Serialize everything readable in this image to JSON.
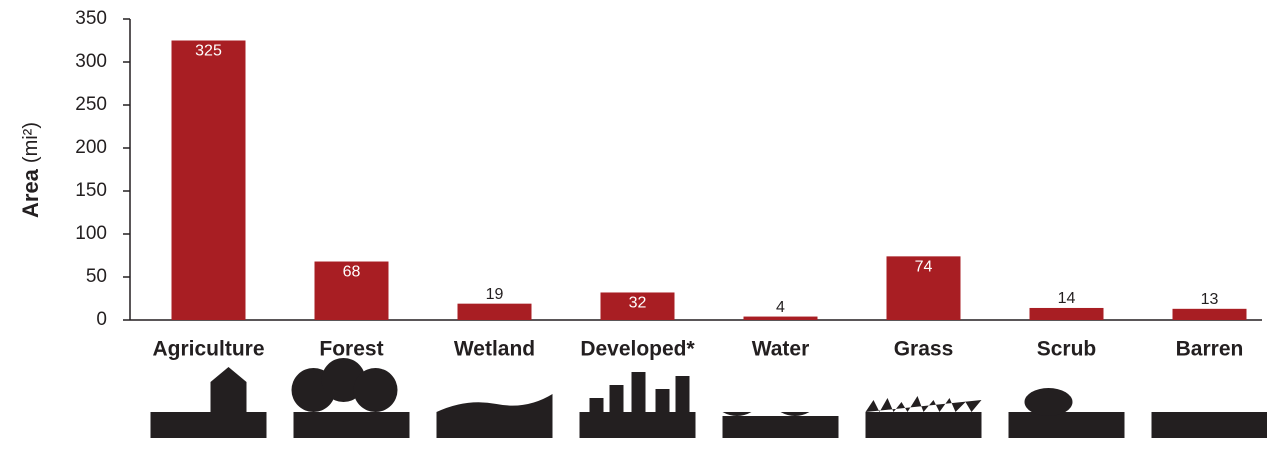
{
  "chart_data": {
    "type": "bar",
    "y_label": "Area",
    "y_label_unit": "(mi²)",
    "categories": [
      "Agriculture",
      "Forest",
      "Wetland",
      "Developed*",
      "Water",
      "Grass",
      "Scrub",
      "Barren"
    ],
    "values": [
      325,
      68,
      19,
      32,
      4,
      74,
      14,
      13
    ],
    "color": "#a81e23",
    "ylim": [
      0,
      350
    ],
    "yticks": [
      0,
      50,
      100,
      150,
      200,
      250,
      300,
      350
    ],
    "grid": false
  }
}
